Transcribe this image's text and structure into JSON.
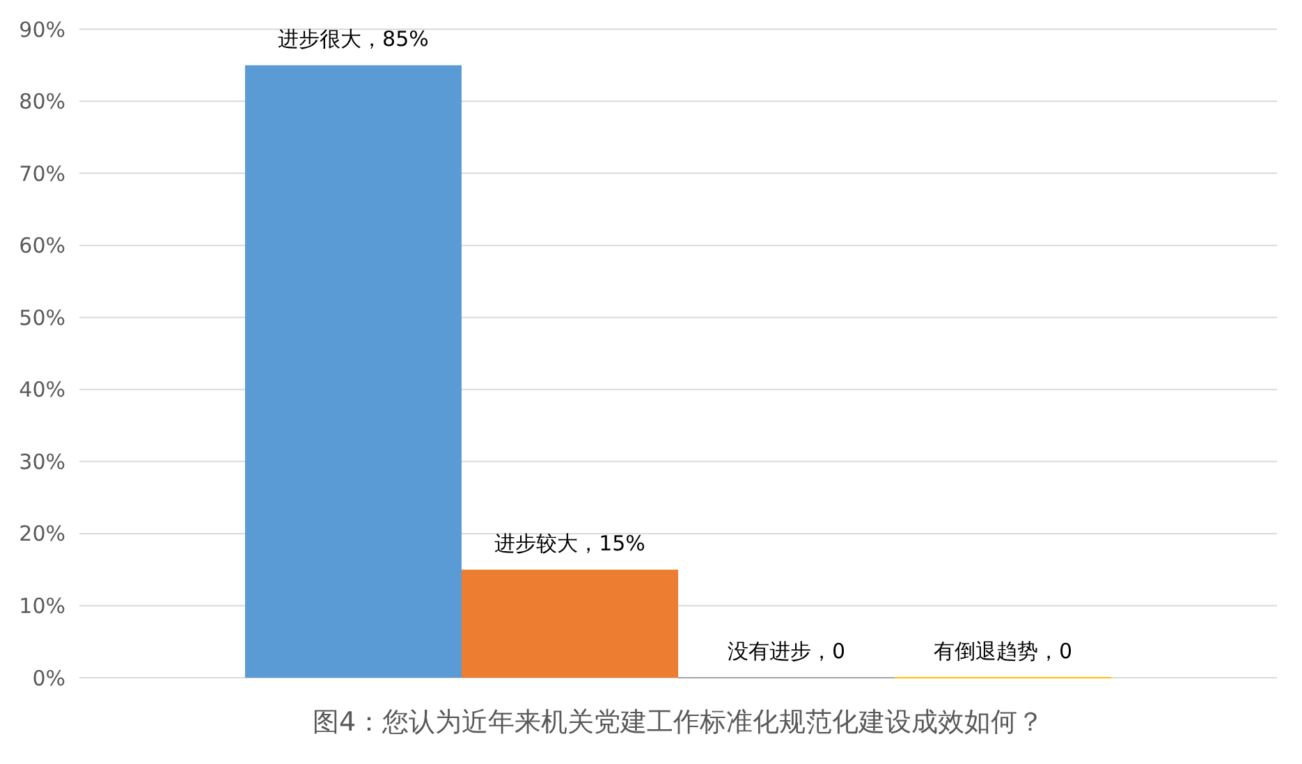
{
  "chart_data": {
    "type": "bar",
    "title": "图4：您认为近年来机关党建工作标准化规范化建设成效如何？",
    "categories": [
      null
    ],
    "series": [
      {
        "color": "#5b9bd5",
        "values": [
          85
        ],
        "value_labels": [
          "进步很大，85%"
        ]
      },
      {
        "color": "#ed7d31",
        "values": [
          15
        ],
        "value_labels": [
          "进步较大，15%"
        ]
      },
      {
        "color": "#a5a5a5",
        "values": [
          0
        ],
        "value_labels": [
          "没有进步，0"
        ]
      },
      {
        "color": "#ffc000",
        "values": [
          0
        ],
        "value_labels": [
          "有倒退趋势，0"
        ]
      }
    ],
    "ylim": [
      0,
      90
    ],
    "yticks": [
      {
        "value": 0,
        "label": "0%"
      },
      {
        "value": 10,
        "label": "10%"
      },
      {
        "value": 20,
        "label": "20%"
      },
      {
        "value": 30,
        "label": "30%"
      },
      {
        "value": 40,
        "label": "40%"
      },
      {
        "value": 50,
        "label": "50%"
      },
      {
        "value": 60,
        "label": "60%"
      },
      {
        "value": 70,
        "label": "70%"
      },
      {
        "value": 80,
        "label": "80%"
      },
      {
        "value": 90,
        "label": "90%"
      }
    ],
    "grid": "y"
  }
}
